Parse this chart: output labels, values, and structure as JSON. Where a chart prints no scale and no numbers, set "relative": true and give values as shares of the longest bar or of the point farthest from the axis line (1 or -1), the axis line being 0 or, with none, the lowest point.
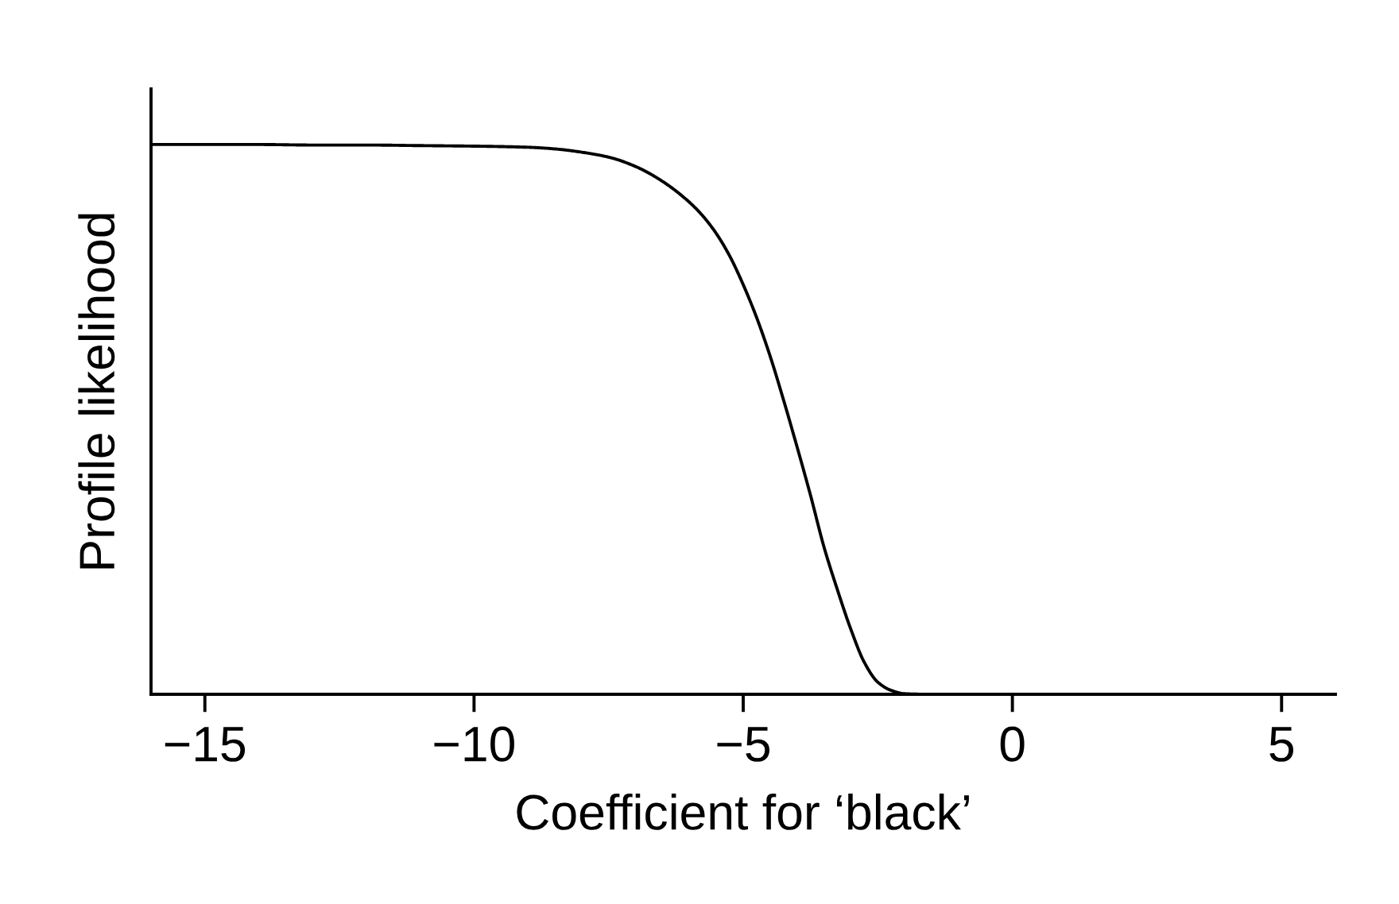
{
  "chart_data": {
    "type": "line",
    "xlabel": "Coefficient for ‘black’",
    "ylabel": "Profile likelihood",
    "relative": true,
    "x": [
      -16,
      -15,
      -14,
      -13,
      -12,
      -11,
      -10,
      -9,
      -8.5,
      -8,
      -7.5,
      -7,
      -6.5,
      -6,
      -5.75,
      -5.5,
      -5.25,
      -5,
      -4.75,
      -4.5,
      -4.25,
      -4,
      -3.75,
      -3.5,
      -3.25,
      -3,
      -2.75,
      -2.5,
      -2.25,
      -2,
      -1.5,
      -1,
      0,
      2,
      4,
      6
    ],
    "series": [
      {
        "color": "#000000",
        "values": [
          1.0,
          1.0,
          1.0,
          0.999,
          0.999,
          0.998,
          0.997,
          0.995,
          0.992,
          0.986,
          0.977,
          0.96,
          0.933,
          0.895,
          0.87,
          0.838,
          0.797,
          0.745,
          0.685,
          0.615,
          0.535,
          0.45,
          0.362,
          0.268,
          0.19,
          0.118,
          0.058,
          0.022,
          0.007,
          0.001,
          0,
          0,
          0,
          0,
          0,
          0
        ]
      }
    ],
    "xlim": [
      -16,
      6
    ],
    "xticks": [
      {
        "value": -15,
        "label": "−15"
      },
      {
        "value": -10,
        "label": "−10"
      },
      {
        "value": -5,
        "label": "−5"
      },
      0,
      5
    ],
    "marker": "none",
    "line_style": "solid"
  }
}
